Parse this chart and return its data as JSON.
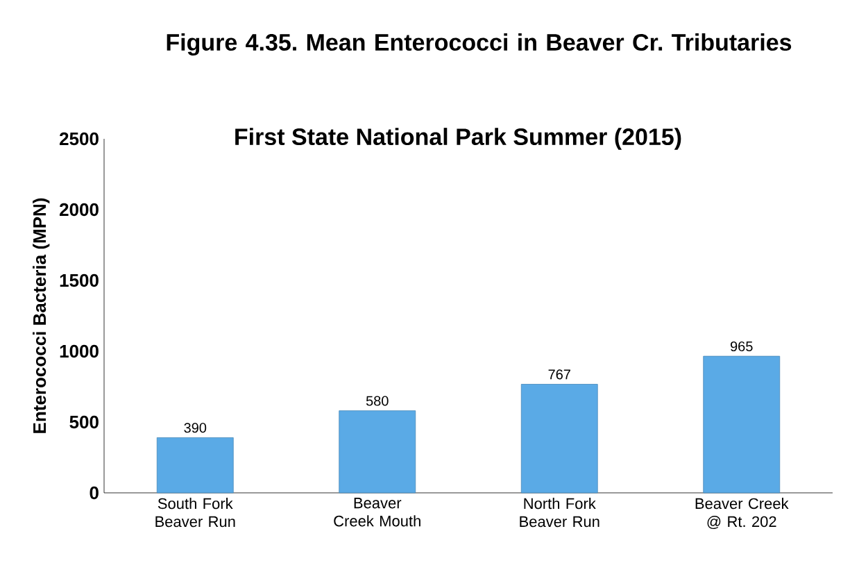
{
  "chart_data": {
    "type": "bar",
    "title": "Figure 4.35. Mean Enterococci in Beaver Cr. Tributaries",
    "subtitle": "First State National Park Summer (2015)",
    "ylabel": "Enterococci Bacteria (MPN)",
    "categories": [
      "South Fork Beaver Run",
      "Beaver Creek Mouth",
      "North Fork Beaver Run",
      "Beaver Creek @ Rt. 202"
    ],
    "values": [
      390,
      580,
      767,
      965
    ],
    "color": "#5aaae6",
    "ylim": [
      0,
      2500
    ],
    "yticks": [
      0,
      500,
      1000,
      1500,
      2000,
      2500
    ],
    "data_labels": true,
    "grid": false
  }
}
